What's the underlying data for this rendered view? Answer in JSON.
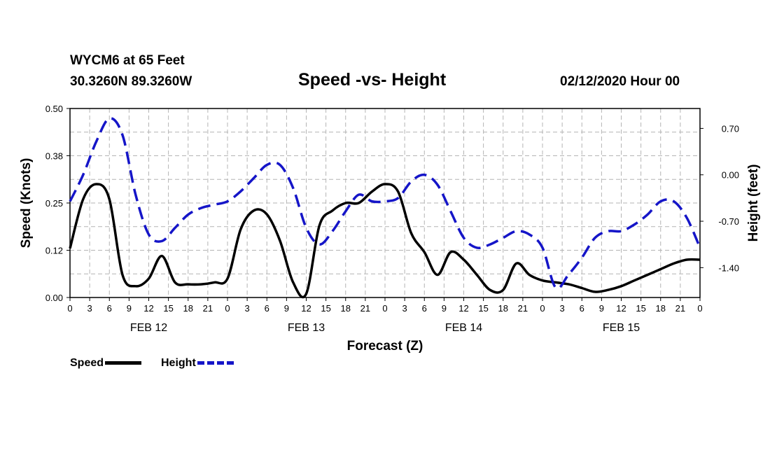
{
  "header": {
    "station": "WYCM6 at 65 Feet",
    "coords": "30.3260N 89.3260W",
    "title": "Speed -vs- Height",
    "datetime": "02/12/2020 Hour 00"
  },
  "legend": {
    "speed_label": "Speed",
    "height_label": "Height"
  },
  "colors": {
    "speed": "#000000",
    "height": "#1515c8",
    "grid": "#b4b4b4"
  },
  "chart_data": {
    "type": "line",
    "title": "Speed -vs- Height",
    "xlabel": "Forecast (Z)",
    "ylabel": "Speed (Knots)",
    "y2label": "Height (feet)",
    "xlim": [
      0,
      96
    ],
    "ylim": [
      0,
      0.5
    ],
    "y2lim": [
      -1.85,
      1.0
    ],
    "y_ticks": [
      "0.00",
      "0.12",
      "0.25",
      "0.38",
      "0.50"
    ],
    "y2_ticks": [
      "0.70",
      "0.00",
      "-0.70",
      "-1.40"
    ],
    "x_ticks": [
      "0",
      "3",
      "6",
      "9",
      "12",
      "15",
      "18",
      "21",
      "0",
      "3",
      "6",
      "9",
      "12",
      "15",
      "18",
      "21",
      "0",
      "3",
      "6",
      "9",
      "12",
      "15",
      "18",
      "21",
      "0",
      "3",
      "6",
      "9",
      "12",
      "15",
      "18",
      "21",
      "0"
    ],
    "day_labels": [
      "FEB 12",
      "FEB 13",
      "FEB 14",
      "FEB 15"
    ],
    "grid": true,
    "legend_position": "bottom-left",
    "x": [
      0,
      2,
      4,
      6,
      8,
      10,
      12,
      14,
      16,
      18,
      20,
      22,
      24,
      26,
      28,
      30,
      32,
      34,
      36,
      38,
      40,
      42,
      44,
      46,
      48,
      50,
      52,
      54,
      56,
      58,
      60,
      62,
      64,
      66,
      68,
      70,
      72,
      74,
      76,
      78,
      80,
      82,
      84,
      86,
      88,
      90,
      92,
      94,
      96
    ],
    "series": [
      {
        "name": "Speed",
        "axis": "left",
        "style": "solid",
        "values": [
          0.13,
          0.26,
          0.3,
          0.26,
          0.06,
          0.03,
          0.05,
          0.11,
          0.04,
          0.035,
          0.035,
          0.04,
          0.05,
          0.18,
          0.23,
          0.22,
          0.15,
          0.04,
          0.01,
          0.19,
          0.23,
          0.25,
          0.25,
          0.28,
          0.3,
          0.28,
          0.17,
          0.12,
          0.06,
          0.12,
          0.1,
          0.06,
          0.02,
          0.02,
          0.09,
          0.06,
          0.045,
          0.04,
          0.035,
          0.025,
          0.015,
          0.02,
          0.03,
          0.045,
          0.06,
          0.075,
          0.09,
          0.1,
          0.1
        ]
      },
      {
        "name": "Height",
        "axis": "right",
        "style": "dashed",
        "values": [
          -0.4,
          0.0,
          0.5,
          0.85,
          0.6,
          -0.3,
          -0.9,
          -1.0,
          -0.8,
          -0.6,
          -0.5,
          -0.45,
          -0.4,
          -0.25,
          -0.05,
          0.15,
          0.15,
          -0.2,
          -0.8,
          -1.05,
          -0.85,
          -0.55,
          -0.3,
          -0.4,
          -0.4,
          -0.35,
          -0.1,
          0.0,
          -0.15,
          -0.55,
          -0.95,
          -1.1,
          -1.05,
          -0.95,
          -0.85,
          -0.9,
          -1.1,
          -1.7,
          -1.5,
          -1.25,
          -0.95,
          -0.85,
          -0.85,
          -0.75,
          -0.6,
          -0.4,
          -0.4,
          -0.65,
          -1.1
        ]
      }
    ]
  }
}
